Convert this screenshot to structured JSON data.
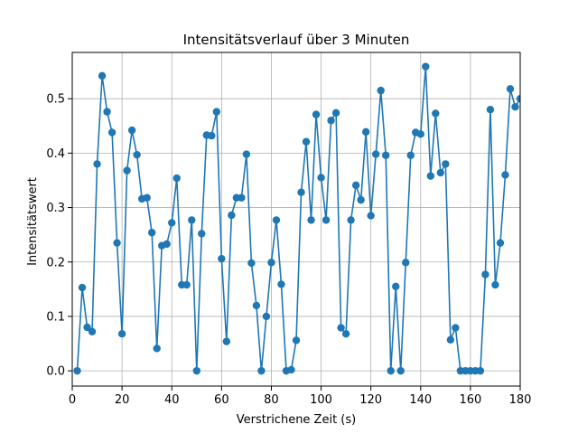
{
  "chart_data": {
    "type": "line",
    "title": "Intensitätsverlauf über 3 Minuten",
    "xlabel": "Verstrichene Zeit (s)",
    "ylabel": "Intensitätswert",
    "xlim": [
      0,
      180
    ],
    "ylim": [
      -0.028,
      0.585
    ],
    "xticks": [
      0,
      20,
      40,
      60,
      80,
      100,
      120,
      140,
      160,
      180
    ],
    "yticks": [
      0.0,
      0.1,
      0.2,
      0.3,
      0.4,
      0.5
    ],
    "ytick_labels": [
      "0.0",
      "0.1",
      "0.2",
      "0.3",
      "0.4",
      "0.5"
    ],
    "grid": true,
    "markers": true,
    "color": "#1f77b4",
    "series": [
      {
        "x": [
          2,
          4,
          6,
          8,
          10,
          12,
          14,
          16,
          18,
          20,
          22,
          24,
          26,
          28,
          30,
          32,
          34,
          36,
          38,
          40,
          42,
          44,
          46,
          48,
          50,
          52,
          54,
          56,
          58,
          60,
          62,
          64,
          66,
          68,
          70,
          72,
          74,
          76,
          78,
          80,
          82,
          84,
          86,
          88,
          90,
          92,
          94,
          96,
          98,
          100,
          102,
          104,
          106,
          108,
          110,
          112,
          114,
          116,
          118,
          120,
          122,
          124,
          126,
          128,
          130,
          132,
          134,
          136,
          138,
          140,
          142,
          144,
          146,
          148,
          150,
          152,
          154,
          156,
          158,
          160,
          162,
          164,
          166,
          168,
          170,
          172,
          174,
          176,
          178,
          180
        ],
        "y": [
          0.0,
          0.153,
          0.08,
          0.072,
          0.38,
          0.542,
          0.476,
          0.438,
          0.235,
          0.068,
          0.368,
          0.442,
          0.397,
          0.316,
          0.318,
          0.254,
          0.041,
          0.23,
          0.233,
          0.272,
          0.354,
          0.158,
          0.158,
          0.277,
          0.0,
          0.252,
          0.433,
          0.432,
          0.476,
          0.206,
          0.054,
          0.286,
          0.318,
          0.318,
          0.398,
          0.198,
          0.12,
          0.0,
          0.1,
          0.199,
          0.277,
          0.159,
          0.0,
          0.002,
          0.056,
          0.328,
          0.421,
          0.277,
          0.471,
          0.355,
          0.277,
          0.46,
          0.474,
          0.079,
          0.068,
          0.277,
          0.341,
          0.314,
          0.439,
          0.285,
          0.398,
          0.515,
          0.396,
          0.0,
          0.155,
          0.0,
          0.199,
          0.396,
          0.438,
          0.435,
          0.559,
          0.358,
          0.473,
          0.364,
          0.38,
          0.057,
          0.079,
          0.0,
          0.0,
          0.0,
          0.0,
          0.0,
          0.177,
          0.48,
          0.158,
          0.235,
          0.36,
          0.518,
          0.485,
          0.5
        ]
      }
    ]
  }
}
